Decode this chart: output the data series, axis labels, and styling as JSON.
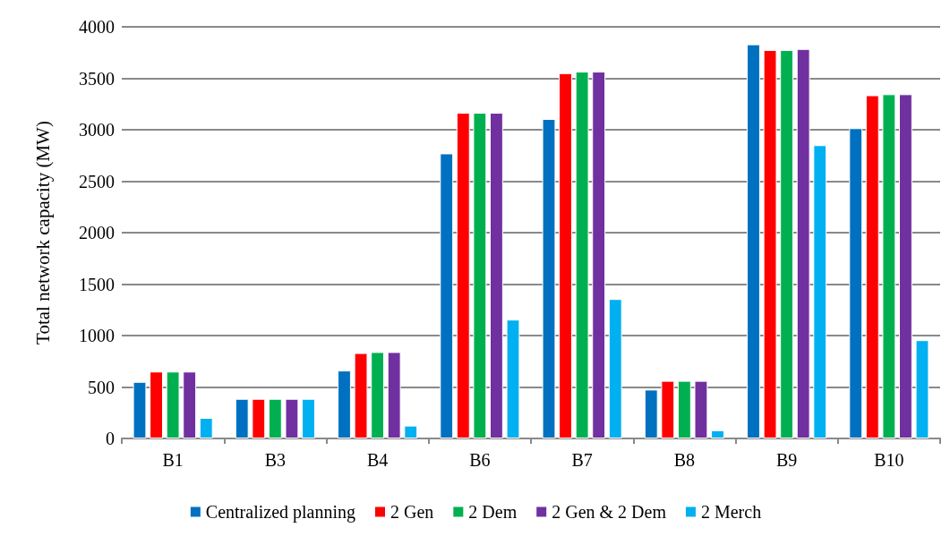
{
  "chart_data": {
    "type": "bar",
    "ylabel": "Total network capacity (MW)",
    "categories": [
      "B1",
      "B3",
      "B4",
      "B6",
      "B7",
      "B8",
      "B9",
      "B10"
    ],
    "series": [
      {
        "name": "Centralized planning",
        "color": "#0070c0",
        "values": [
          550,
          385,
          660,
          2770,
          3105,
          475,
          3830,
          3015
        ]
      },
      {
        "name": "2 Gen",
        "color": "#ff0000",
        "values": [
          650,
          385,
          830,
          3165,
          3550,
          560,
          3775,
          3335
        ]
      },
      {
        "name": "2 Dem",
        "color": "#00b050",
        "values": [
          650,
          385,
          840,
          3165,
          3565,
          560,
          3775,
          3345
        ]
      },
      {
        "name": "2 Gen & 2 Dem",
        "color": "#7030a0",
        "values": [
          650,
          385,
          840,
          3165,
          3565,
          560,
          3785,
          3345
        ]
      },
      {
        "name": "2 Merch",
        "color": "#00b0f0",
        "values": [
          200,
          385,
          125,
          1155,
          1355,
          80,
          2850,
          955
        ]
      }
    ],
    "ylim": [
      0,
      4000
    ],
    "yticks": [
      0,
      500,
      1000,
      1500,
      2000,
      2500,
      3000,
      3500,
      4000
    ],
    "grid": "y",
    "legend": "bottom"
  }
}
